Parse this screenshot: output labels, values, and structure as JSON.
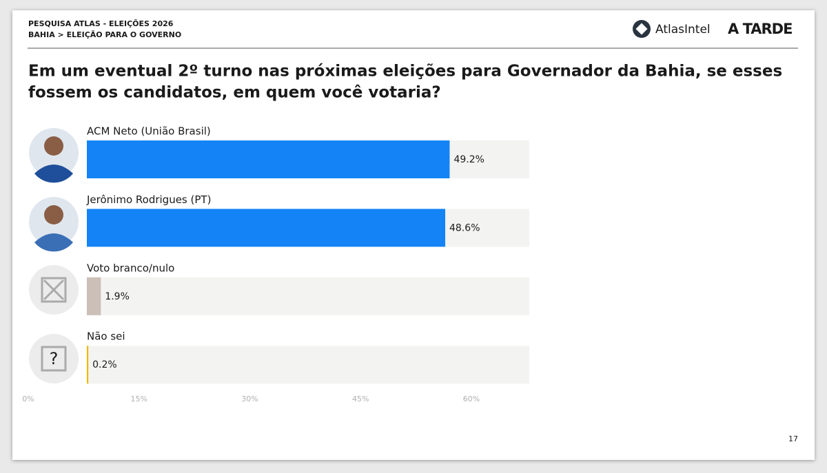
{
  "header": {
    "survey": "PESQUISA ATLAS - ELEIÇÕES 2026",
    "section": "BAHIA > ELEIÇÃO PARA O GOVERNO",
    "logos": [
      "AtlasIntel",
      "A TARDE"
    ]
  },
  "page_number": "17",
  "chart_data": {
    "type": "bar",
    "title": [
      "Em um eventual 2º turno nas próximas eleições para Governador da Bahia, se esses",
      "fossem os candidatos, em quem você votaria?"
    ],
    "categories": [
      "ACM Neto (União Brasil)",
      "Jerônimo Rodrigues (PT)",
      "Voto branco/nulo",
      "Não sei"
    ],
    "values": [
      49.2,
      48.6,
      1.9,
      0.2
    ],
    "value_labels": [
      "49.2%",
      "48.6%",
      "1.9%",
      "0.2%"
    ],
    "colors": [
      "#1383f6",
      "#1383f6",
      "#cbbfb8",
      "#f2b705"
    ],
    "xlim": [
      0,
      60
    ],
    "xticks": [
      {
        "value": 0,
        "label": "0%"
      },
      {
        "value": 15,
        "label": "15%"
      },
      {
        "value": 30,
        "label": "30%"
      },
      {
        "value": 45,
        "label": "45%"
      },
      {
        "value": 60,
        "label": "60%"
      }
    ]
  }
}
